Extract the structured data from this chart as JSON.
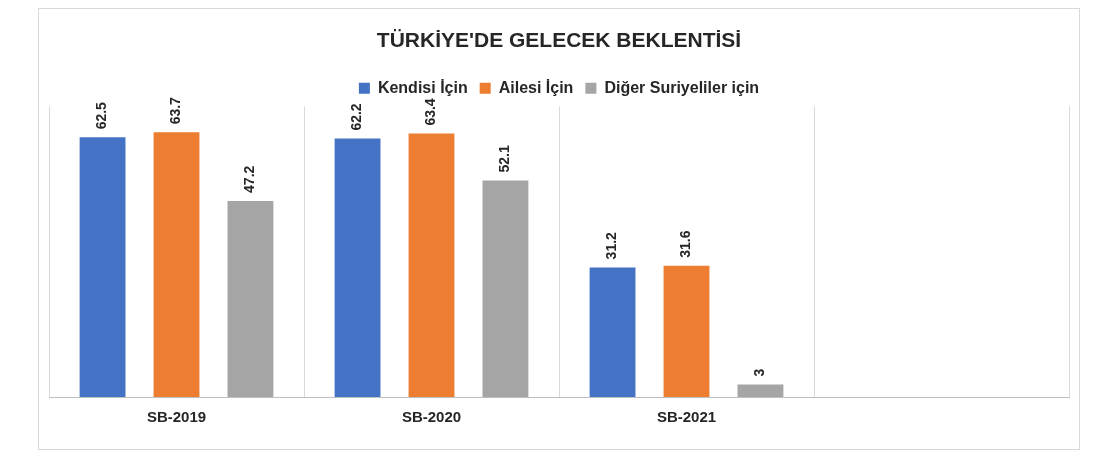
{
  "chart_data": {
    "type": "bar",
    "title": "TÜRKİYE'DE GELECEK BEKLENTİSİ",
    "categories": [
      "SB-2019",
      "SB-2020",
      "SB-2021",
      null
    ],
    "series": [
      {
        "name": "Kendisi İçin",
        "color": "#4472c4",
        "values": [
          62.5,
          62.2,
          31.2,
          null
        ]
      },
      {
        "name": "Ailesi İçin",
        "color": "#ed7d31",
        "values": [
          63.7,
          63.4,
          31.6,
          null
        ]
      },
      {
        "name": "Diğer Suriyeliler için",
        "color": "#a5a5a5",
        "values": [
          47.2,
          52.1,
          3,
          null
        ]
      }
    ],
    "ylim": [
      0,
      70
    ],
    "data_labels": true,
    "legend": "top",
    "grid": "x",
    "tick_labels": "x"
  }
}
